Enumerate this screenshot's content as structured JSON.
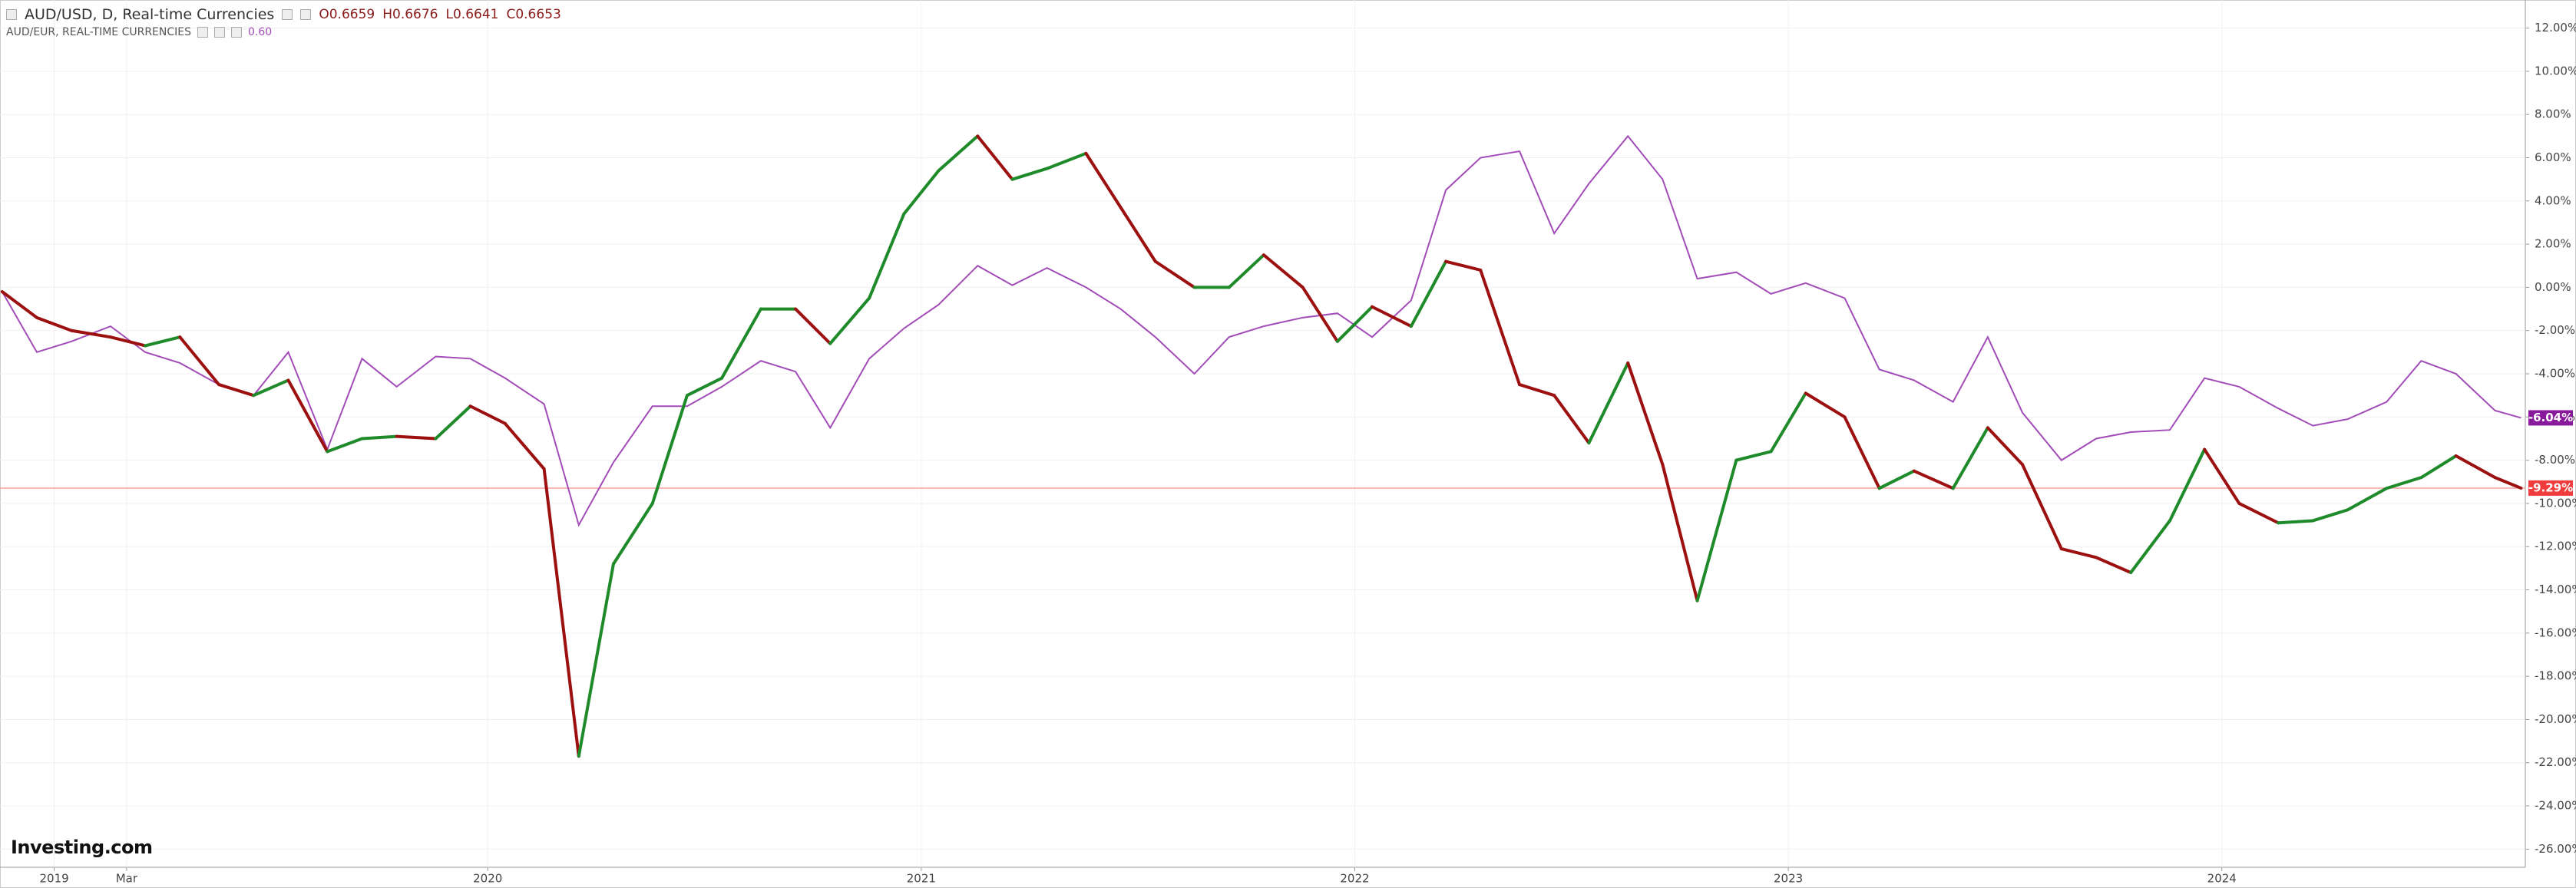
{
  "chart_data": {
    "type": "line",
    "header": {
      "ohlc": [
        "O0.6659",
        "H0.6676",
        "L0.6641",
        "C0.6653"
      ]
    },
    "logo": "Investing.com",
    "x": [
      2018.88,
      2018.96,
      2019.04,
      2019.13,
      2019.21,
      2019.29,
      2019.38,
      2019.46,
      2019.54,
      2019.63,
      2019.71,
      2019.79,
      2019.88,
      2019.96,
      2020.04,
      2020.13,
      2020.21,
      2020.29,
      2020.38,
      2020.46,
      2020.54,
      2020.63,
      2020.71,
      2020.79,
      2020.88,
      2020.96,
      2021.04,
      2021.13,
      2021.21,
      2021.29,
      2021.38,
      2021.46,
      2021.54,
      2021.63,
      2021.71,
      2021.79,
      2021.88,
      2021.96,
      2022.04,
      2022.13,
      2022.21,
      2022.29,
      2022.38,
      2022.46,
      2022.54,
      2022.63,
      2022.71,
      2022.79,
      2022.88,
      2022.96,
      2023.04,
      2023.13,
      2023.21,
      2023.29,
      2023.38,
      2023.46,
      2023.54,
      2023.63,
      2023.71,
      2023.79,
      2023.88,
      2023.96,
      2024.04,
      2024.13,
      2024.21,
      2024.29,
      2024.38,
      2024.46,
      2024.54,
      2024.63,
      2024.69
    ],
    "series": [
      {
        "name": "AUD/USD, D, Real-time Currencies",
        "up_color": "#1e8a2a",
        "down_color": "#9c1010",
        "last_color": "#f03c3c",
        "values": [
          -0.2,
          -1.4,
          -2.0,
          -2.3,
          -2.7,
          -2.3,
          -4.5,
          -5.0,
          -4.3,
          -7.6,
          -7.0,
          -6.9,
          -7.0,
          -5.5,
          -6.3,
          -8.4,
          -21.7,
          -12.8,
          -10.0,
          -5.0,
          -4.2,
          -1.0,
          -1.0,
          -2.6,
          -0.5,
          3.4,
          5.4,
          7.0,
          5.0,
          5.5,
          6.2,
          3.7,
          1.2,
          0.0,
          0.0,
          1.5,
          0.0,
          -2.5,
          -0.9,
          -1.8,
          1.2,
          0.8,
          -4.5,
          -5.0,
          -7.2,
          -3.5,
          -8.2,
          -14.5,
          -8.0,
          -7.6,
          -4.9,
          -6.0,
          -9.3,
          -8.5,
          -9.3,
          -6.5,
          -8.2,
          -12.1,
          -12.5,
          -13.2,
          -10.8,
          -7.5,
          -10.0,
          -10.9,
          -10.8,
          -10.3,
          -9.3,
          -8.8,
          -7.8,
          -8.8,
          -9.29
        ],
        "value_labels": [
          null,
          null,
          null,
          null,
          null,
          null,
          null,
          null,
          null,
          null,
          null,
          null,
          null,
          null,
          null,
          null,
          null,
          null,
          null,
          null,
          null,
          null,
          null,
          null,
          null,
          null,
          null,
          null,
          null,
          null,
          null,
          null,
          null,
          null,
          null,
          null,
          null,
          null,
          null,
          null,
          null,
          null,
          null,
          null,
          null,
          null,
          null,
          null,
          null,
          null,
          null,
          null,
          null,
          null,
          null,
          null,
          null,
          null,
          null,
          null,
          null,
          null,
          null,
          null,
          null,
          null,
          null,
          null,
          null,
          null,
          "-9.29%"
        ]
      },
      {
        "name": "AUD/EUR, REAL-TIME CURRENCIES",
        "legend_value": "0.60",
        "color": "#a24cb8",
        "last_color": "#8a1a9c",
        "values": [
          -0.2,
          -3.0,
          -2.5,
          -1.8,
          -3.0,
          -3.5,
          -4.5,
          -5.0,
          -3.0,
          -7.5,
          -3.3,
          -4.6,
          -3.2,
          -3.3,
          -4.2,
          -5.4,
          -11.0,
          -8.1,
          -5.5,
          -5.5,
          -4.6,
          -3.4,
          -3.9,
          -6.5,
          -3.3,
          -1.9,
          -0.8,
          1.0,
          0.1,
          0.9,
          0.0,
          -1.0,
          -2.3,
          -4.0,
          -2.3,
          -1.8,
          -1.4,
          -1.2,
          -2.3,
          -0.6,
          4.5,
          6.0,
          6.3,
          2.5,
          4.8,
          7.0,
          5.0,
          0.4,
          0.7,
          -0.3,
          0.2,
          -0.5,
          -3.8,
          -4.3,
          -5.3,
          -2.3,
          -5.8,
          -8.0,
          -7.0,
          -6.7,
          -6.6,
          -4.2,
          -4.6,
          -5.6,
          -6.4,
          -6.1,
          -5.3,
          -3.4,
          -4.0,
          -5.7,
          -6.04
        ],
        "value_labels": [
          null,
          null,
          null,
          null,
          null,
          null,
          null,
          null,
          null,
          null,
          null,
          null,
          null,
          null,
          null,
          null,
          null,
          null,
          null,
          null,
          null,
          null,
          null,
          null,
          null,
          null,
          null,
          null,
          null,
          null,
          null,
          null,
          null,
          null,
          null,
          null,
          null,
          null,
          null,
          null,
          null,
          null,
          null,
          null,
          null,
          null,
          null,
          null,
          null,
          null,
          null,
          null,
          null,
          null,
          null,
          null,
          null,
          null,
          null,
          null,
          null,
          null,
          null,
          null,
          null,
          null,
          null,
          null,
          null,
          null,
          "-6.04%"
        ]
      }
    ],
    "xlim": [
      2018.875,
      2024.7
    ],
    "xticks": [
      2019,
      {
        "value": 2019.167,
        "label": "Mar"
      },
      2020,
      2021,
      2022,
      2023,
      2024
    ],
    "ylim": [
      -26.84,
      13.3
    ],
    "yticks": [
      {
        "value": 12,
        "label": "12.00%"
      },
      {
        "value": 10,
        "label": "10.00%"
      },
      {
        "value": 8,
        "label": "8.00%"
      },
      {
        "value": 6,
        "label": "6.00%"
      },
      {
        "value": 4,
        "label": "4.00%"
      },
      {
        "value": 2,
        "label": "2.00%"
      },
      {
        "value": 0,
        "label": "0.00%"
      },
      {
        "value": -2,
        "label": "-2.00%"
      },
      {
        "value": -4,
        "label": "-4.00%"
      },
      {
        "value": -6,
        "label": "-6.00%"
      },
      {
        "value": -8,
        "label": "-8.00%"
      },
      {
        "value": -10,
        "label": "-10.00%"
      },
      {
        "value": -12,
        "label": "-12.00%"
      },
      {
        "value": -14,
        "label": "-14.00%"
      },
      {
        "value": -16,
        "label": "-16.00%"
      },
      {
        "value": -18,
        "label": "-18.00%"
      },
      {
        "value": -20,
        "label": "-20.00%"
      },
      {
        "value": -22,
        "label": "-22.00%"
      },
      {
        "value": -24,
        "label": "-24.00%"
      },
      {
        "value": -26,
        "label": "-26.00%"
      }
    ],
    "grid": true
  }
}
